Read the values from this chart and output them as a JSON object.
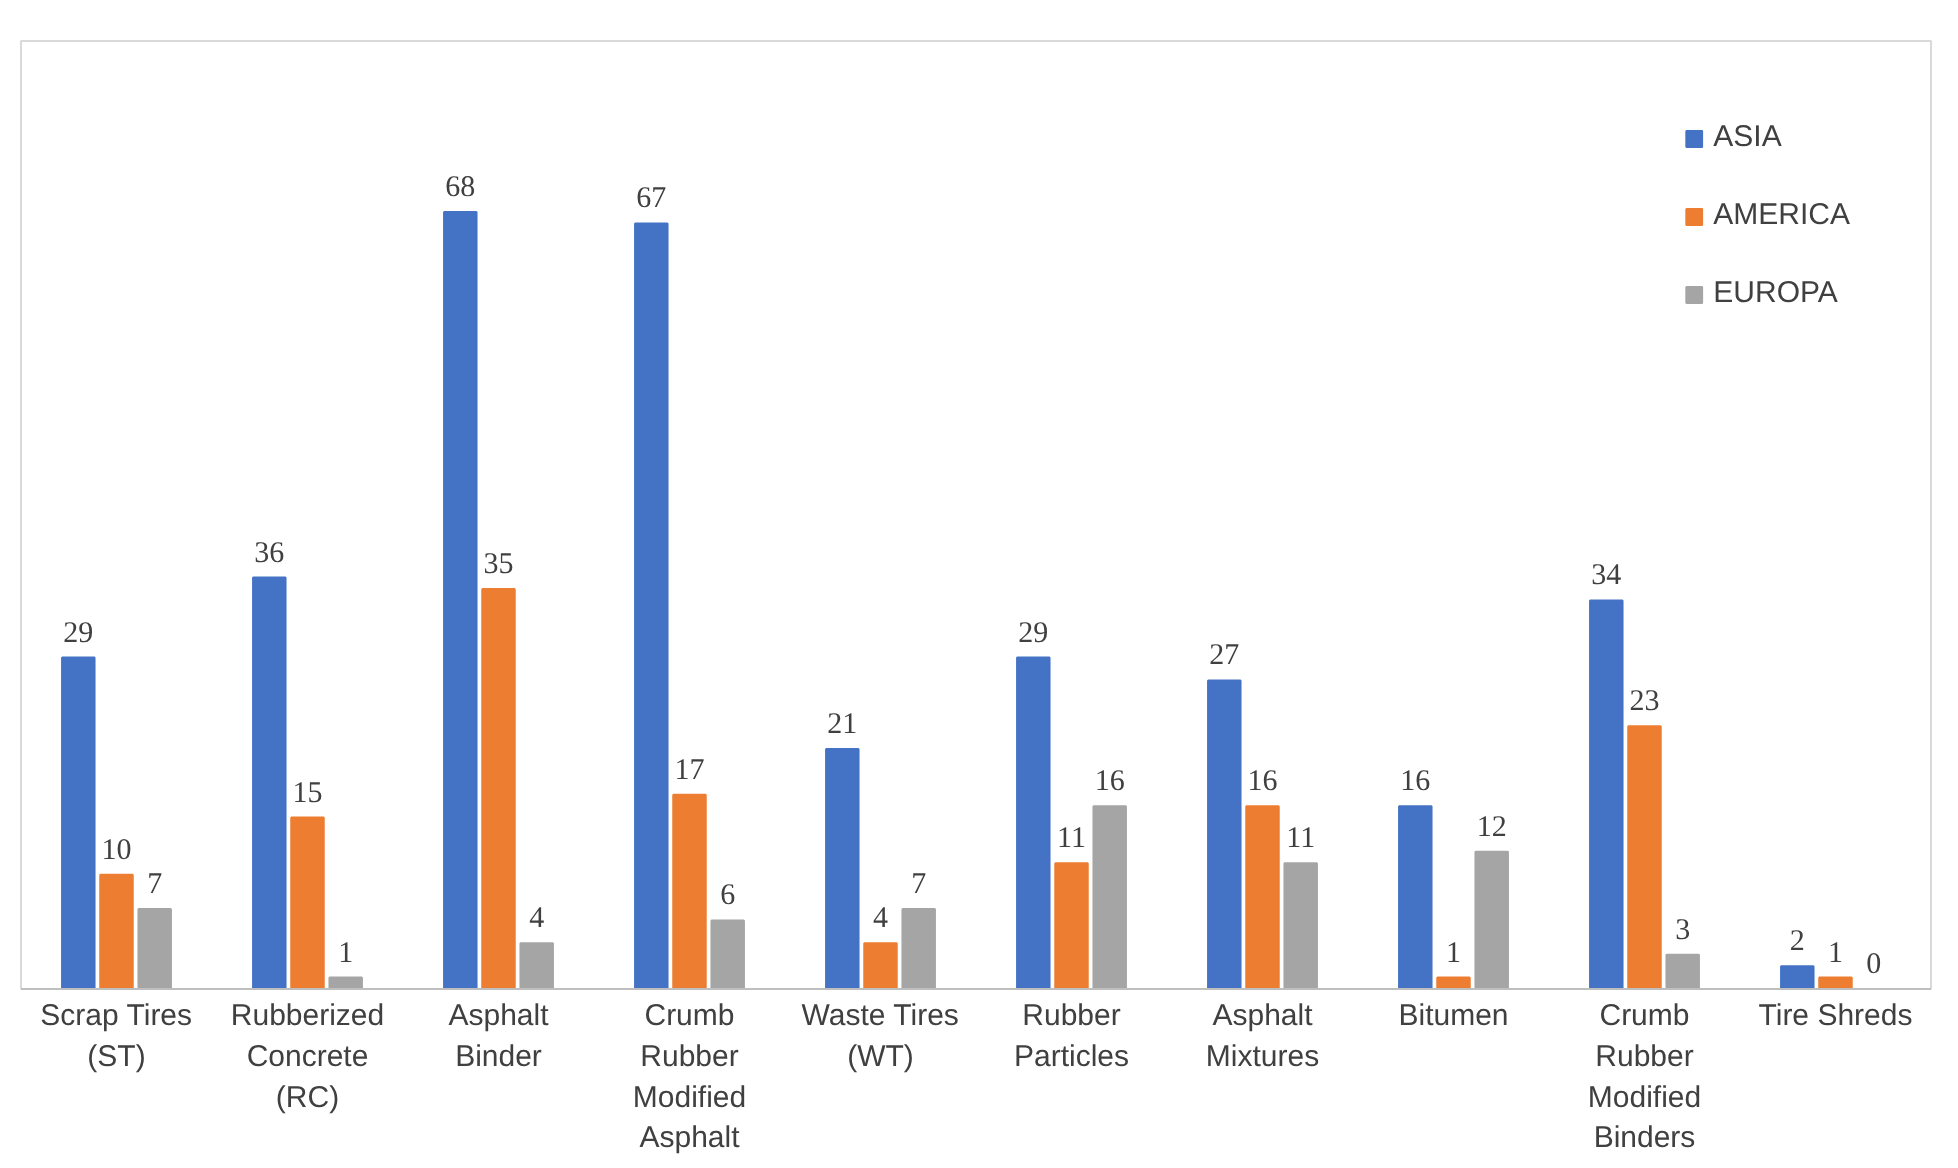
{
  "chart_data": {
    "type": "bar",
    "categories": [
      "Scrap Tires (ST)",
      "Rubberized Concrete (RC)",
      "Asphalt Binder",
      "Crumb Rubber Modified Asphalt",
      "Waste Tires (WT)",
      "Rubber Particles",
      "Asphalt Mixtures",
      "Bitumen",
      "Crumb Rubber Modified Binders",
      "Tire Shreds"
    ],
    "series": [
      {
        "name": "ASIA",
        "color": "#4472c4",
        "values": [
          29,
          36,
          68,
          67,
          21,
          29,
          27,
          16,
          34,
          2
        ]
      },
      {
        "name": "AMERICA",
        "color": "#ed7d31",
        "values": [
          10,
          15,
          35,
          17,
          4,
          11,
          16,
          1,
          23,
          1
        ]
      },
      {
        "name": "EUROPA",
        "color": "#a5a5a5",
        "values": [
          7,
          1,
          4,
          6,
          7,
          16,
          11,
          12,
          3,
          0
        ]
      }
    ],
    "data_labels": true,
    "legend": "top right",
    "grid": false
  }
}
